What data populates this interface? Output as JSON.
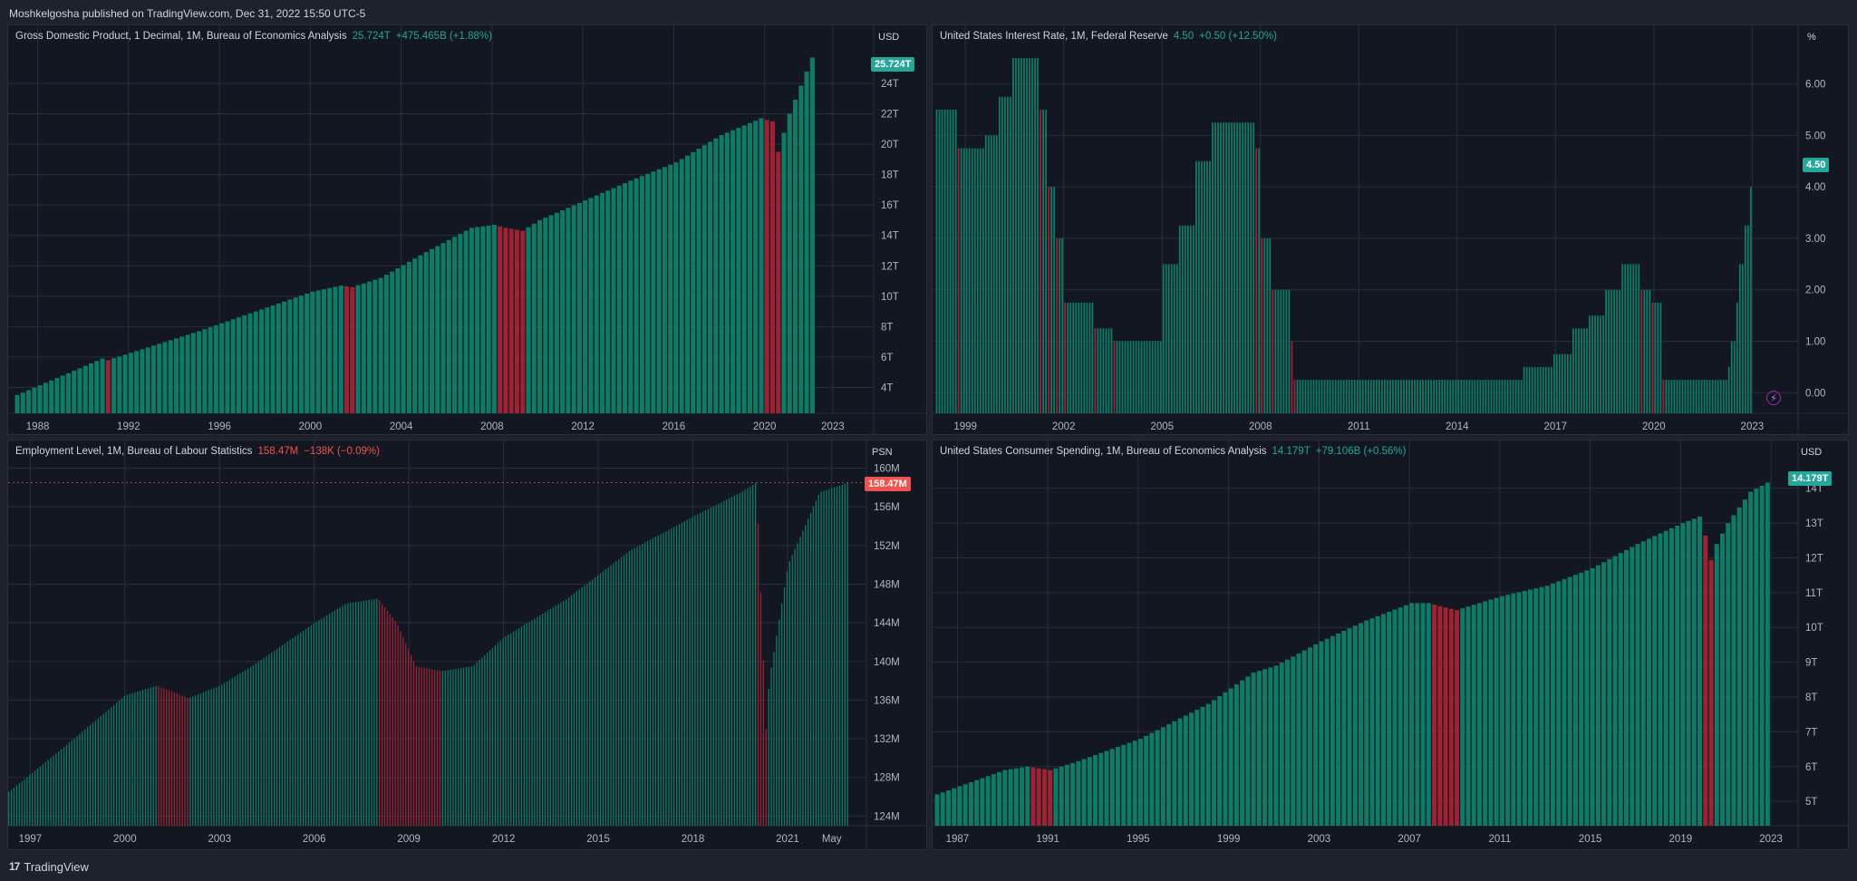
{
  "header": {
    "publisher_line": "Moshkelgosha published on TradingView.com, Dec 31, 2022 15:50 UTC-5"
  },
  "footer": {
    "logo_mark": "17",
    "brand": "TradingView"
  },
  "colors": {
    "up": "#26a69a",
    "down": "#ef5350",
    "bar_up": "#0f7a66",
    "bar_down": "#9b2334",
    "panel_bg": "#131722",
    "grid": "#2a2e39",
    "axis_text": "#b2b5be"
  },
  "panels": [
    {
      "id": "gdp",
      "name": "Gross Domestic Product, 1 Decimal, 1M, Bureau of Economics Analysis",
      "value": "25.724T",
      "change": "+475.465B (+1.88%)",
      "change_dir": "up",
      "unit": "USD",
      "badge": "25.724T",
      "badge_dir": "up"
    },
    {
      "id": "rate",
      "name": "United States Interest Rate, 1M, Federal Reserve",
      "value": "4.50",
      "change": "+0.50 (+12.50%)",
      "change_dir": "up",
      "unit": "%",
      "badge": "4.50",
      "badge_dir": "up",
      "marker_icon": "lightning-icon"
    },
    {
      "id": "employment",
      "name": "Employment Level, 1M, Bureau of Labour Statistics",
      "value": "158.47M",
      "change": "−138K (−0.09%)",
      "change_dir": "down",
      "unit": "PSN",
      "badge": "158.47M",
      "badge_dir": "down"
    },
    {
      "id": "spending",
      "name": "United States Consumer Spending, 1M, Bureau of Economics Analysis",
      "value": "14.179T",
      "change": "+79.106B (+0.56%)",
      "change_dir": "up",
      "unit": "USD",
      "badge": "14.179T",
      "badge_dir": "up"
    }
  ],
  "chart_data": [
    {
      "type": "bar",
      "title": "Gross Domestic Product, 1 Decimal, 1M, Bureau of Economics Analysis",
      "ylabel": "USD",
      "x_ticks": [
        "1988",
        "1992",
        "1996",
        "2000",
        "2004",
        "2008",
        "2012",
        "2016",
        "2020",
        "2023"
      ],
      "y_ticks": [
        "4T",
        "6T",
        "8T",
        "10T",
        "12T",
        "14T",
        "16T",
        "18T",
        "20T",
        "22T",
        "24T"
      ],
      "ylim_trillions": [
        2.3,
        26.5
      ],
      "xlim": [
        1986.7,
        2024.8
      ],
      "grid": true,
      "series": [
        {
          "x": [
            1987.0,
            1990.75,
            1991.0,
            1995.0,
            2000.0,
            2001.25,
            2001.75,
            2003.0,
            2005.0,
            2007.0,
            2008.0,
            2008.5,
            2009.25,
            2010.0,
            2012.0,
            2014.0,
            2016.0,
            2018.0,
            2019.75,
            2020.25,
            2020.5,
            2021.0,
            2022.0
          ],
          "values": [
            3.5,
            5.9,
            5.8,
            7.7,
            10.3,
            10.7,
            10.6,
            11.2,
            12.9,
            14.5,
            14.7,
            14.5,
            14.3,
            15.0,
            16.3,
            17.6,
            18.8,
            20.6,
            21.7,
            21.5,
            19.5,
            22.0,
            25.7
          ]
        }
      ]
    },
    {
      "type": "bar",
      "title": "United States Interest Rate, 1M, Federal Reserve",
      "ylabel": "%",
      "x_ticks": [
        "1999",
        "2002",
        "2005",
        "2008",
        "2011",
        "2014",
        "2017",
        "2020",
        "2023"
      ],
      "y_ticks": [
        "0.00",
        "1.00",
        "2.00",
        "3.00",
        "4.00",
        "5.00",
        "6.00"
      ],
      "ylim": [
        -0.4,
        6.75
      ],
      "xlim": [
        1998.0,
        2024.4
      ],
      "grid": true,
      "series": [
        {
          "x": [
            1998.1,
            1998.75,
            1998.9,
            1999.6,
            2000.0,
            2000.4,
            2000.95,
            2001.2,
            2001.5,
            2001.75,
            2001.95,
            2002.9,
            2003.5,
            2004.5,
            2005.0,
            2005.5,
            2006.0,
            2006.5,
            2007.6,
            2007.8,
            2008.0,
            2008.3,
            2008.9,
            2009.0,
            2015.95,
            2016.9,
            2017.5,
            2018.0,
            2018.5,
            2018.95,
            2019.6,
            2019.9,
            2020.2,
            2022.2,
            2022.35,
            2022.45,
            2022.6,
            2022.75,
            2022.9,
            2022.95
          ],
          "values": [
            5.5,
            4.75,
            4.75,
            5.0,
            5.75,
            6.5,
            6.5,
            5.5,
            4.0,
            3.0,
            1.75,
            1.25,
            1.0,
            1.0,
            2.5,
            3.25,
            4.5,
            5.25,
            5.25,
            4.75,
            3.0,
            2.0,
            1.0,
            0.25,
            0.5,
            0.75,
            1.25,
            1.5,
            2.0,
            2.5,
            2.0,
            1.75,
            0.25,
            0.5,
            1.0,
            1.75,
            2.5,
            3.25,
            4.0,
            4.5
          ]
        }
      ]
    },
    {
      "type": "bar",
      "title": "Employment Level, 1M, Bureau of Labour Statistics",
      "ylabel": "PSN",
      "x_ticks": [
        "1997",
        "2000",
        "2003",
        "2006",
        "2009",
        "2012",
        "2015",
        "2018",
        "2021",
        "May"
      ],
      "y_ticks": [
        "124M",
        "128M",
        "132M",
        "136M",
        "140M",
        "144M",
        "148M",
        "152M",
        "156M",
        "160M"
      ],
      "ylim_millions": [
        123.0,
        160.8
      ],
      "xlim": [
        1996.3,
        2023.5
      ],
      "grid": true,
      "series": [
        {
          "x": [
            1996.3,
            1998.0,
            2000.0,
            2001.0,
            2002.0,
            2003.0,
            2004.0,
            2006.0,
            2007.0,
            2008.0,
            2008.6,
            2009.2,
            2010.0,
            2011.0,
            2012.0,
            2014.0,
            2016.0,
            2018.0,
            2019.5,
            2020.0,
            2020.3,
            2020.4,
            2021.0,
            2022.0,
            2022.9
          ],
          "values": [
            126.5,
            131.0,
            136.5,
            137.5,
            136.2,
            137.5,
            139.5,
            144.0,
            146.0,
            146.5,
            144.0,
            139.5,
            139.0,
            139.5,
            142.5,
            146.5,
            151.5,
            155.0,
            157.5,
            158.5,
            133.0,
            138.0,
            150.0,
            157.5,
            158.5
          ]
        }
      ]
    },
    {
      "type": "bar",
      "title": "United States Consumer Spending, 1M, Bureau of Economics Analysis",
      "ylabel": "USD",
      "x_ticks": [
        "1987",
        "1991",
        "1995",
        "1999",
        "2003",
        "2007",
        "2011",
        "2015",
        "2019",
        "2023"
      ],
      "y_ticks": [
        "5T",
        "6T",
        "7T",
        "8T",
        "9T",
        "10T",
        "11T",
        "12T",
        "13T",
        "14T"
      ],
      "ylim_trillions": [
        4.3,
        14.8
      ],
      "xlim": [
        1985.9,
        2024.2
      ],
      "grid": true,
      "series": [
        {
          "x": [
            1986.0,
            1989.0,
            1990.0,
            1991.0,
            1992.0,
            1995.0,
            1998.0,
            2000.0,
            2001.0,
            2003.0,
            2005.0,
            2007.0,
            2007.8,
            2008.3,
            2009.0,
            2010.0,
            2011.0,
            2013.0,
            2015.0,
            2017.0,
            2019.0,
            2019.8,
            2020.3,
            2020.5,
            2021.0,
            2022.0,
            2022.8
          ],
          "values": [
            5.2,
            5.9,
            6.0,
            5.9,
            6.1,
            6.8,
            7.8,
            8.7,
            8.9,
            9.6,
            10.2,
            10.7,
            10.7,
            10.6,
            10.5,
            10.7,
            10.9,
            11.2,
            11.7,
            12.4,
            13.0,
            13.2,
            11.8,
            12.4,
            13.0,
            13.9,
            14.179
          ]
        }
      ]
    }
  ]
}
